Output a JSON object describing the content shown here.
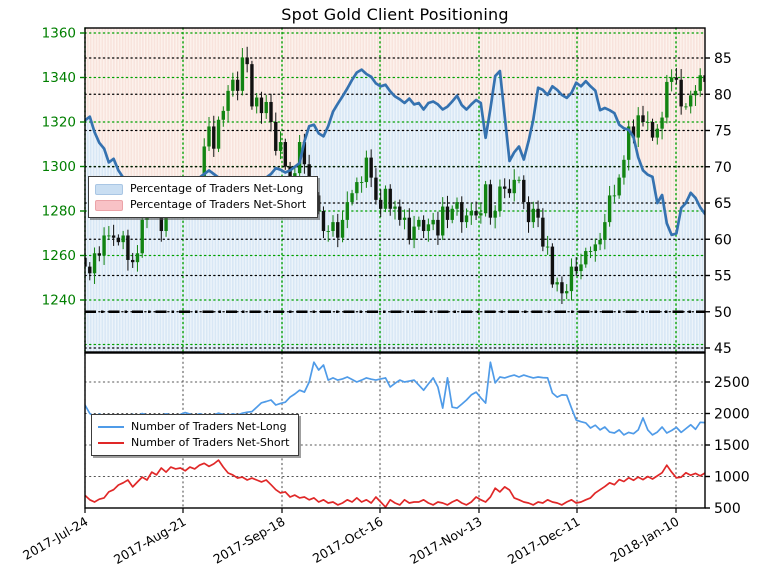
{
  "title": "Spot Gold Client Positioning",
  "sentiment_legend": [
    {
      "label": "Percentage of Traders Net-Long",
      "swatch_color": "#c9def2"
    },
    {
      "label": "Percentage of Traders Net-Short",
      "swatch_color": "#f8c2c6"
    }
  ],
  "count_legend": [
    {
      "label": "Number of Traders Net-Long",
      "color": "#4f9be8"
    },
    {
      "label": "Number of Traders Net-Short",
      "color": "#e02828"
    }
  ],
  "colors": {
    "price_axis_green": "#007f00",
    "grid_green": "#00a000",
    "candle_up": "#128412",
    "candle_down": "#111111",
    "pct_line_blue": "#3572b0",
    "area_blue_stripe": "#d8e7f5",
    "area_pink_stripe": "#f8e3dc",
    "count_long_blue": "#4f9be8",
    "count_short_red": "#e02828"
  },
  "chart_data": [
    {
      "type": "candlestick",
      "title": "Spot Gold Client Positioning",
      "price_axis": {
        "side": "left",
        "ticks": [
          1360,
          1340,
          1320,
          1300,
          1280,
          1260,
          1240
        ],
        "color": "#007f00"
      },
      "pct_axis": {
        "side": "right",
        "ticks": [
          85,
          80,
          75,
          70,
          65,
          60,
          55,
          50,
          45
        ]
      },
      "x_tick_labels": [
        "2017-Jul-24",
        "2017-Aug-21",
        "2017-Sep-18",
        "2017-Oct-16",
        "2017-Nov-13",
        "2017-Dec-11",
        "2018-Jan-10"
      ],
      "reference_pct_line": 50,
      "gold_close": [
        1255,
        1252,
        1261,
        1260,
        1269,
        1269,
        1268,
        1266,
        1269,
        1258,
        1257,
        1261,
        1276,
        1286,
        1289,
        1282,
        1271,
        1283,
        1287,
        1284,
        1291,
        1285,
        1290,
        1286,
        1291,
        1309,
        1318,
        1308,
        1321,
        1325,
        1334,
        1339,
        1334,
        1349,
        1346,
        1327,
        1331,
        1324,
        1329,
        1320,
        1307,
        1311,
        1300,
        1291,
        1297,
        1311,
        1301,
        1282,
        1287,
        1280,
        1271,
        1271,
        1275,
        1268,
        1276,
        1284,
        1288,
        1293,
        1293,
        1304,
        1295,
        1285,
        1281,
        1290,
        1281,
        1282,
        1276,
        1277,
        1267,
        1273,
        1276,
        1271,
        1274,
        1276,
        1269,
        1282,
        1276,
        1281,
        1284,
        1275,
        1278,
        1280,
        1278,
        1279,
        1292,
        1277,
        1280,
        1291,
        1290,
        1288,
        1294,
        1294,
        1284,
        1275,
        1281,
        1277,
        1264,
        1264,
        1247,
        1248,
        1243,
        1244,
        1255,
        1253,
        1256,
        1262,
        1262,
        1265,
        1267,
        1275,
        1287,
        1287,
        1295,
        1303,
        1318,
        1313,
        1323,
        1320,
        1320,
        1313,
        1317,
        1322,
        1338,
        1340,
        1339,
        1327,
        1327,
        1332,
        1334,
        1341,
        1338
      ],
      "pct_net_long": [
        76.4,
        76.9,
        74.8,
        73.3,
        72.5,
        70.6,
        71.1,
        69.5,
        68.5,
        68.0,
        67.5,
        67.0,
        66.5,
        66.0,
        66.5,
        67.0,
        66.5,
        66.0,
        65.5,
        66.0,
        66.5,
        67.0,
        67.5,
        68.0,
        68.5,
        69.0,
        69.5,
        69.0,
        68.5,
        68.0,
        67.5,
        67.0,
        66.5,
        66.0,
        66.5,
        67.0,
        67.5,
        68.0,
        68.5,
        69.0,
        69.8,
        69.6,
        69.2,
        69.5,
        70.0,
        70.5,
        73.5,
        75.6,
        75.8,
        74.6,
        74.2,
        75.6,
        77.6,
        78.7,
        79.7,
        80.8,
        82.0,
        83.0,
        83.4,
        82.8,
        82.4,
        81.5,
        81.1,
        81.3,
        80.4,
        79.7,
        79.3,
        78.8,
        79.4,
        78.6,
        78.8,
        77.9,
        78.8,
        79.0,
        78.6,
        77.9,
        78.3,
        79.0,
        79.8,
        78.5,
        77.9,
        78.6,
        79.2,
        78.8,
        74.0,
        78.0,
        82.5,
        83.2,
        77.0,
        70.8,
        72.0,
        72.8,
        71.0,
        73.5,
        76.5,
        80.9,
        80.6,
        79.9,
        81.1,
        80.6,
        79.9,
        79.5,
        80.2,
        81.6,
        81.1,
        81.8,
        81.1,
        80.5,
        77.8,
        78.1,
        77.8,
        77.4,
        75.8,
        75.3,
        75.1,
        74.1,
        71.3,
        69.5,
        68.9,
        68.6,
        65.0,
        66.1,
        62.2,
        60.6,
        60.8,
        64.3,
        65.0,
        66.4,
        65.7,
        64.4,
        63.5
      ]
    },
    {
      "type": "line",
      "count_axis": {
        "side": "right",
        "ticks": [
          2500,
          2000,
          1500,
          1000,
          500
        ]
      },
      "series": [
        {
          "name": "Number of Traders Net-Long",
          "color": "#4f9be8",
          "values": [
            2135,
            2000,
            1950,
            1990,
            1960,
            1930,
            1970,
            1940,
            1915,
            1950,
            1985,
            1960,
            2000,
            1975,
            1945,
            1925,
            1965,
            1995,
            1975,
            1955,
            1985,
            2015,
            1990,
            1965,
            1995,
            1975,
            1945,
            1975,
            2005,
            1985,
            1965,
            1995,
            1975,
            2005,
            2020,
            2030,
            2100,
            2170,
            2190,
            2215,
            2135,
            2160,
            2180,
            2260,
            2310,
            2370,
            2340,
            2500,
            2815,
            2690,
            2770,
            2530,
            2565,
            2530,
            2550,
            2580,
            2540,
            2500,
            2530,
            2565,
            2545,
            2530,
            2550,
            2565,
            2420,
            2480,
            2530,
            2500,
            2515,
            2530,
            2450,
            2370,
            2470,
            2565,
            2420,
            2085,
            2565,
            2100,
            2085,
            2150,
            2215,
            2295,
            2340,
            2250,
            2165,
            2815,
            2485,
            2580,
            2565,
            2590,
            2610,
            2580,
            2610,
            2585,
            2565,
            2580,
            2570,
            2565,
            2325,
            2260,
            2295,
            2290,
            2085,
            1895,
            1870,
            1850,
            1770,
            1815,
            1740,
            1785,
            1705,
            1690,
            1740,
            1660,
            1700,
            1680,
            1740,
            1930,
            1740,
            1660,
            1705,
            1785,
            1690,
            1730,
            1780,
            1700,
            1760,
            1820,
            1750,
            1860,
            1855
          ]
        },
        {
          "name": "Number of Traders Net-Short",
          "color": "#e02828",
          "values": [
            700,
            630,
            595,
            640,
            660,
            755,
            790,
            865,
            900,
            945,
            835,
            915,
            990,
            945,
            1070,
            1025,
            1135,
            1070,
            1150,
            1120,
            1135,
            1090,
            1150,
            1120,
            1180,
            1210,
            1160,
            1200,
            1260,
            1150,
            1055,
            1025,
            975,
            990,
            945,
            975,
            945,
            915,
            945,
            870,
            790,
            740,
            755,
            675,
            705,
            660,
            675,
            630,
            660,
            595,
            630,
            580,
            595,
            550,
            580,
            630,
            595,
            660,
            595,
            630,
            580,
            675,
            595,
            515,
            630,
            580,
            550,
            630,
            580,
            595,
            595,
            630,
            580,
            550,
            595,
            580,
            550,
            595,
            630,
            580,
            550,
            595,
            675,
            630,
            595,
            675,
            815,
            755,
            835,
            785,
            660,
            630,
            595,
            580,
            550,
            595,
            580,
            630,
            595,
            580,
            550,
            595,
            630,
            580,
            595,
            630,
            660,
            740,
            790,
            840,
            900,
            870,
            950,
            920,
            980,
            940,
            990,
            950,
            1000,
            960,
            1010,
            1060,
            1180,
            1070,
            980,
            990,
            1060,
            1020,
            1050,
            1010,
            1055
          ]
        }
      ]
    }
  ]
}
